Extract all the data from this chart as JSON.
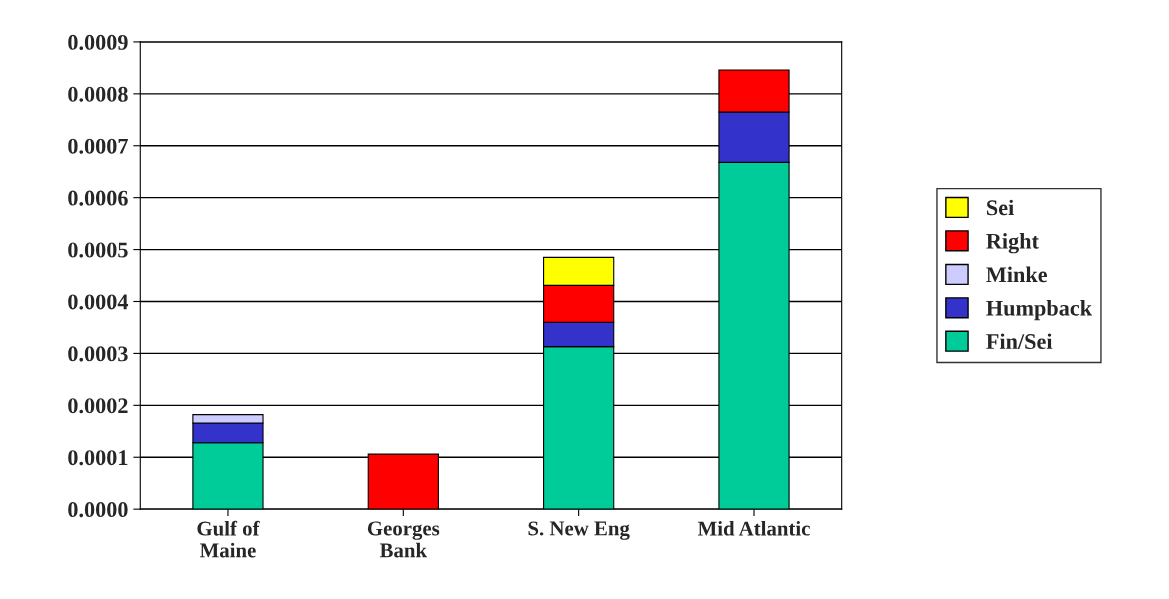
{
  "chart_data": {
    "type": "bar",
    "stacked": true,
    "categories": [
      "Gulf of\nMaine",
      "Georges\nBank",
      "S. New Eng",
      "Mid Atlantic"
    ],
    "series": [
      {
        "name": "Fin/Sei",
        "color": "#00cc99",
        "values": [
          0.000128,
          null,
          0.000313,
          0.000668
        ]
      },
      {
        "name": "Humpback",
        "color": "#3333cc",
        "values": [
          3.8e-05,
          null,
          4.7e-05,
          9.7e-05
        ]
      },
      {
        "name": "Minke",
        "color": "#ccccff",
        "values": [
          1.6e-05,
          null,
          null,
          null
        ]
      },
      {
        "name": "Right",
        "color": "#ff0000",
        "values": [
          null,
          0.000106,
          7.1e-05,
          8.1e-05
        ]
      },
      {
        "name": "Sei",
        "color": "#ffff00",
        "values": [
          null,
          null,
          5.4e-05,
          null
        ]
      }
    ],
    "ylim": [
      0,
      0.0009
    ],
    "yticks": [
      {
        "value": 0,
        "label": "0.0000"
      },
      {
        "value": 0.0001,
        "label": "0.0001"
      },
      {
        "value": 0.0002,
        "label": "0.0002"
      },
      {
        "value": 0.0003,
        "label": "0.0003"
      },
      {
        "value": 0.0004,
        "label": "0.0004"
      },
      {
        "value": 0.0005,
        "label": "0.0005"
      },
      {
        "value": 0.0006,
        "label": "0.0006"
      },
      {
        "value": 0.0007,
        "label": "0.0007"
      },
      {
        "value": 0.0008,
        "label": "0.0008"
      },
      {
        "value": 0.0009,
        "label": "0.0009"
      }
    ],
    "grid": "y",
    "legend": "right"
  }
}
